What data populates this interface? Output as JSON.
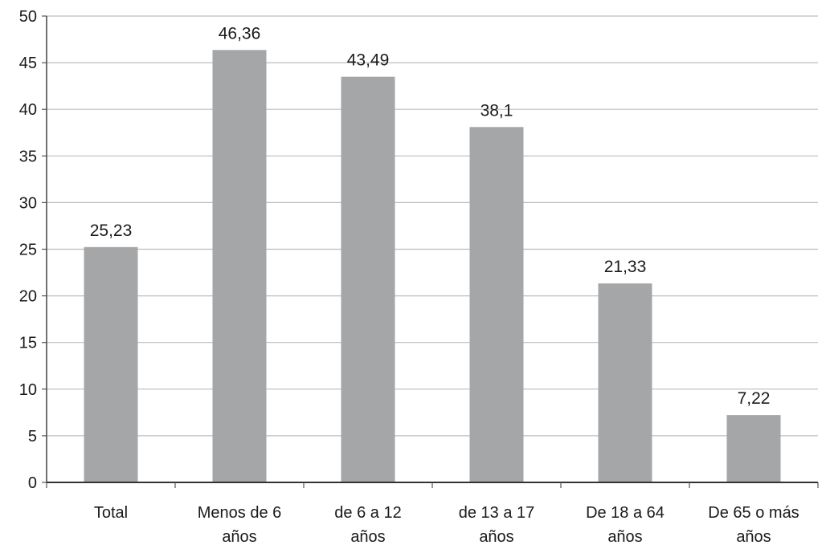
{
  "chart_data": {
    "type": "bar",
    "title": "",
    "xlabel": "",
    "ylabel": "",
    "ylim": [
      0,
      50
    ],
    "yticks": [
      0,
      5,
      10,
      15,
      20,
      25,
      30,
      35,
      40,
      45,
      50
    ],
    "grid": true,
    "legend": "none",
    "bar_color": "#a5a6a8",
    "categories": [
      [
        "Total"
      ],
      [
        "Menos de 6",
        "años"
      ],
      [
        "de 6 a 12",
        "años"
      ],
      [
        "de 13 a 17",
        "años"
      ],
      [
        "De 18 a 64",
        "años"
      ],
      [
        "De 65 o más",
        "años"
      ]
    ],
    "values": [
      25.23,
      46.36,
      43.49,
      38.1,
      21.33,
      7.22
    ],
    "value_labels": [
      "25,23",
      "46,36",
      "43,49",
      "38,1",
      "21,33",
      "7,22"
    ]
  }
}
